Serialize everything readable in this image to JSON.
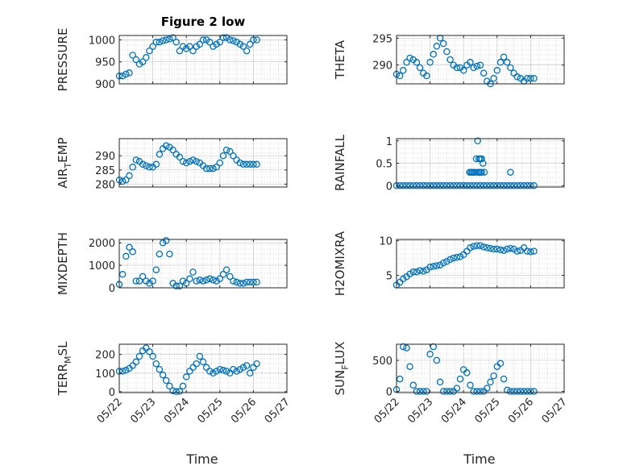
{
  "figure": {
    "xlabel": "Time"
  },
  "colors": {
    "series": "#0072BD",
    "axes": "#262626",
    "grid": "#d0d0d0"
  },
  "chart_data": [
    {
      "type": "scatter",
      "title": "Figure 2 low",
      "ylabel": "PRESSURE",
      "ylim": [
        900,
        1010
      ],
      "yticks": [
        900,
        950,
        1000
      ],
      "xticks": [
        "05/22",
        "05/23",
        "05/24",
        "05/25",
        "05/26",
        "05/27"
      ],
      "xlim": [
        0,
        5
      ],
      "grid": true,
      "series": [
        {
          "x": [
            0.0,
            0.1,
            0.2,
            0.3,
            0.4,
            0.5,
            0.6,
            0.7,
            0.8,
            0.9,
            1.0,
            1.1,
            1.2,
            1.3,
            1.4,
            1.5,
            1.6,
            1.7,
            1.8,
            1.9,
            2.0,
            2.1,
            2.2,
            2.3,
            2.4,
            2.5,
            2.6,
            2.7,
            2.8,
            2.9,
            3.0,
            3.1,
            3.2,
            3.3,
            3.4,
            3.5,
            3.6,
            3.7,
            3.8,
            3.9,
            4.0,
            4.1
          ],
          "y": [
            918,
            918,
            922,
            925,
            965,
            955,
            945,
            950,
            960,
            975,
            985,
            995,
            995,
            998,
            1000,
            1002,
            1005,
            995,
            975,
            985,
            980,
            985,
            975,
            985,
            990,
            1000,
            1000,
            995,
            985,
            990,
            995,
            1005,
            1005,
            1000,
            998,
            995,
            990,
            985,
            975,
            990,
            1000,
            1000
          ]
        }
      ]
    },
    {
      "type": "scatter",
      "title": "",
      "ylabel": "THETA",
      "ylim": [
        286.5,
        295.5
      ],
      "yticks": [
        290,
        295
      ],
      "xticks": [
        "05/22",
        "05/23",
        "05/24",
        "05/25",
        "05/26",
        "05/27"
      ],
      "xlim": [
        0,
        5
      ],
      "grid": true,
      "series": [
        {
          "x": [
            0.0,
            0.1,
            0.2,
            0.3,
            0.4,
            0.5,
            0.6,
            0.7,
            0.8,
            0.9,
            1.0,
            1.1,
            1.2,
            1.3,
            1.4,
            1.5,
            1.6,
            1.7,
            1.8,
            1.9,
            2.0,
            2.1,
            2.2,
            2.3,
            2.4,
            2.5,
            2.6,
            2.7,
            2.8,
            2.9,
            3.0,
            3.1,
            3.2,
            3.3,
            3.4,
            3.5,
            3.6,
            3.7,
            3.8,
            3.9,
            4.0,
            4.1
          ],
          "y": [
            288.3,
            288.0,
            289.0,
            290.5,
            291.3,
            291.0,
            290.5,
            289.5,
            288.5,
            288.0,
            290.5,
            292.0,
            293.5,
            295.0,
            294.0,
            292.5,
            291.0,
            290.0,
            289.5,
            289.5,
            289.0,
            290.0,
            290.5,
            289.5,
            289.8,
            290.0,
            288.5,
            287.0,
            286.5,
            287.5,
            289.0,
            290.5,
            291.5,
            290.5,
            289.5,
            288.5,
            287.8,
            287.5,
            287.0,
            287.5,
            287.5,
            287.5
          ]
        }
      ]
    },
    {
      "type": "scatter",
      "title": "",
      "ylabel": "AIR_TEMP",
      "ylim": [
        279,
        296
      ],
      "yticks": [
        280,
        285,
        290
      ],
      "xticks": [
        "05/22",
        "05/23",
        "05/24",
        "05/25",
        "05/26",
        "05/27"
      ],
      "xlim": [
        0,
        5
      ],
      "grid": true,
      "series": [
        {
          "x": [
            0.0,
            0.1,
            0.2,
            0.3,
            0.4,
            0.5,
            0.6,
            0.7,
            0.8,
            0.9,
            1.0,
            1.1,
            1.2,
            1.3,
            1.4,
            1.5,
            1.6,
            1.7,
            1.8,
            1.9,
            2.0,
            2.1,
            2.2,
            2.3,
            2.4,
            2.5,
            2.6,
            2.7,
            2.8,
            2.9,
            3.0,
            3.1,
            3.2,
            3.3,
            3.4,
            3.5,
            3.6,
            3.7,
            3.8,
            3.9,
            4.0,
            4.1
          ],
          "y": [
            281.5,
            281.0,
            281.5,
            283.0,
            286.0,
            288.5,
            288.0,
            287.0,
            286.5,
            286.0,
            286.0,
            287.0,
            290.5,
            292.5,
            293.5,
            293.0,
            292.0,
            290.5,
            289.5,
            288.0,
            287.5,
            288.0,
            288.5,
            288.0,
            287.5,
            286.5,
            285.5,
            285.5,
            285.5,
            286.0,
            287.5,
            290.0,
            292.0,
            291.5,
            290.0,
            288.5,
            287.5,
            287.0,
            287.0,
            287.0,
            287.0,
            287.0
          ]
        }
      ]
    },
    {
      "type": "scatter",
      "title": "",
      "ylabel": "RAINFALL",
      "ylim": [
        -0.03,
        1.05
      ],
      "yticks": [
        0,
        0.5,
        1
      ],
      "xticks": [
        "05/22",
        "05/23",
        "05/24",
        "05/25",
        "05/26",
        "05/27"
      ],
      "xlim": [
        0,
        5
      ],
      "grid": true,
      "series": [
        {
          "x": [
            0.0,
            0.1,
            0.2,
            0.3,
            0.4,
            0.5,
            0.6,
            0.7,
            0.8,
            0.9,
            1.0,
            1.1,
            1.2,
            1.3,
            1.4,
            1.5,
            1.6,
            1.7,
            1.8,
            1.9,
            2.0,
            2.1,
            2.2,
            2.3,
            2.4,
            2.5,
            2.6,
            2.7,
            2.8,
            2.9,
            3.0,
            3.1,
            3.2,
            3.3,
            3.4,
            3.5,
            3.6,
            3.7,
            3.8,
            3.9,
            4.0,
            4.1,
            2.18,
            2.22,
            2.26,
            2.3,
            2.34,
            2.38,
            2.42,
            2.42,
            2.46,
            2.46,
            2.5,
            2.5,
            2.54,
            2.54,
            2.58,
            2.62,
            3.4
          ],
          "y": [
            0,
            0,
            0,
            0,
            0,
            0,
            0,
            0,
            0,
            0,
            0,
            0,
            0,
            0,
            0,
            0,
            0,
            0,
            0,
            0,
            0,
            0,
            0,
            0,
            0,
            0,
            0,
            0,
            0,
            0,
            0,
            0,
            0,
            0,
            0,
            0,
            0,
            0,
            0,
            0,
            0,
            0,
            0.3,
            0.3,
            0.3,
            0.3,
            0.3,
            0.6,
            0.3,
            1.0,
            0.6,
            0.3,
            0.6,
            0.3,
            0.6,
            0.3,
            0.5,
            0.3,
            0.3
          ]
        }
      ]
    },
    {
      "type": "scatter",
      "title": "",
      "ylabel": "MIXDEPTH",
      "ylim": [
        0,
        2150
      ],
      "yticks": [
        0,
        1000,
        2000
      ],
      "xticks": [
        "05/22",
        "05/23",
        "05/24",
        "05/25",
        "05/26",
        "05/27"
      ],
      "xlim": [
        0,
        5
      ],
      "grid": true,
      "series": [
        {
          "x": [
            0.0,
            0.1,
            0.2,
            0.3,
            0.4,
            0.5,
            0.6,
            0.7,
            0.8,
            0.9,
            1.0,
            1.1,
            1.2,
            1.3,
            1.4,
            1.5,
            1.6,
            1.7,
            1.8,
            1.9,
            2.0,
            2.1,
            2.2,
            2.3,
            2.4,
            2.5,
            2.6,
            2.7,
            2.8,
            2.9,
            3.0,
            3.1,
            3.2,
            3.3,
            3.4,
            3.5,
            3.6,
            3.7,
            3.8,
            3.9,
            4.0,
            4.1
          ],
          "y": [
            150,
            600,
            1400,
            1800,
            1600,
            300,
            300,
            500,
            300,
            200,
            300,
            800,
            1500,
            2000,
            2100,
            1500,
            200,
            80,
            80,
            300,
            200,
            400,
            700,
            300,
            350,
            300,
            350,
            400,
            350,
            300,
            400,
            600,
            800,
            500,
            300,
            250,
            200,
            200,
            250,
            250,
            250,
            250
          ]
        }
      ]
    },
    {
      "type": "scatter",
      "title": "",
      "ylabel": "H2OMIXRA",
      "ylim": [
        3.2,
        10.2
      ],
      "yticks": [
        5,
        10
      ],
      "xticks": [
        "05/22",
        "05/23",
        "05/24",
        "05/25",
        "05/26",
        "05/27"
      ],
      "xlim": [
        0,
        5
      ],
      "grid": true,
      "series": [
        {
          "x": [
            0.0,
            0.1,
            0.2,
            0.3,
            0.4,
            0.5,
            0.6,
            0.7,
            0.8,
            0.9,
            1.0,
            1.1,
            1.2,
            1.3,
            1.4,
            1.5,
            1.6,
            1.7,
            1.8,
            1.9,
            2.0,
            2.1,
            2.2,
            2.3,
            2.4,
            2.5,
            2.6,
            2.7,
            2.8,
            2.9,
            3.0,
            3.1,
            3.2,
            3.3,
            3.4,
            3.5,
            3.6,
            3.7,
            3.8,
            3.9,
            4.0,
            4.1
          ],
          "y": [
            3.6,
            4.0,
            4.5,
            4.8,
            5.2,
            5.5,
            5.5,
            5.7,
            5.6,
            5.8,
            6.2,
            6.3,
            6.4,
            6.5,
            6.8,
            7.0,
            7.3,
            7.5,
            7.6,
            7.7,
            8.0,
            8.5,
            9.0,
            9.2,
            9.3,
            9.3,
            9.1,
            9.0,
            8.9,
            8.8,
            8.8,
            8.7,
            8.6,
            8.8,
            8.9,
            8.8,
            8.5,
            8.6,
            9.0,
            8.5,
            8.4,
            8.5
          ]
        }
      ]
    },
    {
      "type": "scatter",
      "title": "",
      "ylabel": "TERR_MSL",
      "ylim": [
        -5,
        255
      ],
      "yticks": [
        0,
        100,
        200
      ],
      "xticks": [
        "05/22",
        "05/23",
        "05/24",
        "05/25",
        "05/26",
        "05/27"
      ],
      "xlim": [
        0,
        5
      ],
      "grid": true,
      "series": [
        {
          "x": [
            0.0,
            0.1,
            0.2,
            0.3,
            0.4,
            0.5,
            0.6,
            0.7,
            0.8,
            0.9,
            1.0,
            1.1,
            1.2,
            1.3,
            1.4,
            1.5,
            1.6,
            1.7,
            1.8,
            1.9,
            2.0,
            2.1,
            2.2,
            2.3,
            2.4,
            2.5,
            2.6,
            2.7,
            2.8,
            2.9,
            3.0,
            3.1,
            3.2,
            3.3,
            3.4,
            3.5,
            3.6,
            3.7,
            3.8,
            3.9,
            4.0,
            4.1
          ],
          "y": [
            110,
            110,
            115,
            125,
            140,
            160,
            190,
            220,
            235,
            215,
            190,
            150,
            120,
            90,
            60,
            30,
            5,
            0,
            2,
            30,
            80,
            110,
            130,
            150,
            190,
            160,
            130,
            110,
            100,
            110,
            120,
            115,
            110,
            100,
            120,
            110,
            120,
            130,
            140,
            100,
            130,
            150
          ]
        }
      ]
    },
    {
      "type": "scatter",
      "title": "",
      "ylabel": "SUN_FLUX",
      "ylim": [
        -20,
        760
      ],
      "yticks": [
        0,
        500
      ],
      "xticks": [
        "05/22",
        "05/23",
        "05/24",
        "05/25",
        "05/26",
        "05/27"
      ],
      "xlim": [
        0,
        5
      ],
      "grid": true,
      "series": [
        {
          "x": [
            0.0,
            0.1,
            0.2,
            0.3,
            0.4,
            0.5,
            0.6,
            0.7,
            0.8,
            0.9,
            1.0,
            1.1,
            1.2,
            1.3,
            1.4,
            1.5,
            1.6,
            1.7,
            1.8,
            1.9,
            2.0,
            2.1,
            2.2,
            2.3,
            2.4,
            2.5,
            2.6,
            2.7,
            2.8,
            2.9,
            3.0,
            3.1,
            3.2,
            3.3,
            3.4,
            3.5,
            3.6,
            3.7,
            3.8,
            3.9,
            4.0,
            4.1
          ],
          "y": [
            30,
            200,
            720,
            700,
            400,
            100,
            0,
            0,
            0,
            0,
            600,
            720,
            500,
            150,
            0,
            0,
            0,
            0,
            50,
            200,
            350,
            300,
            100,
            0,
            0,
            0,
            0,
            50,
            150,
            250,
            400,
            450,
            200,
            20,
            0,
            0,
            0,
            0,
            0,
            0,
            0,
            0
          ]
        }
      ]
    }
  ]
}
